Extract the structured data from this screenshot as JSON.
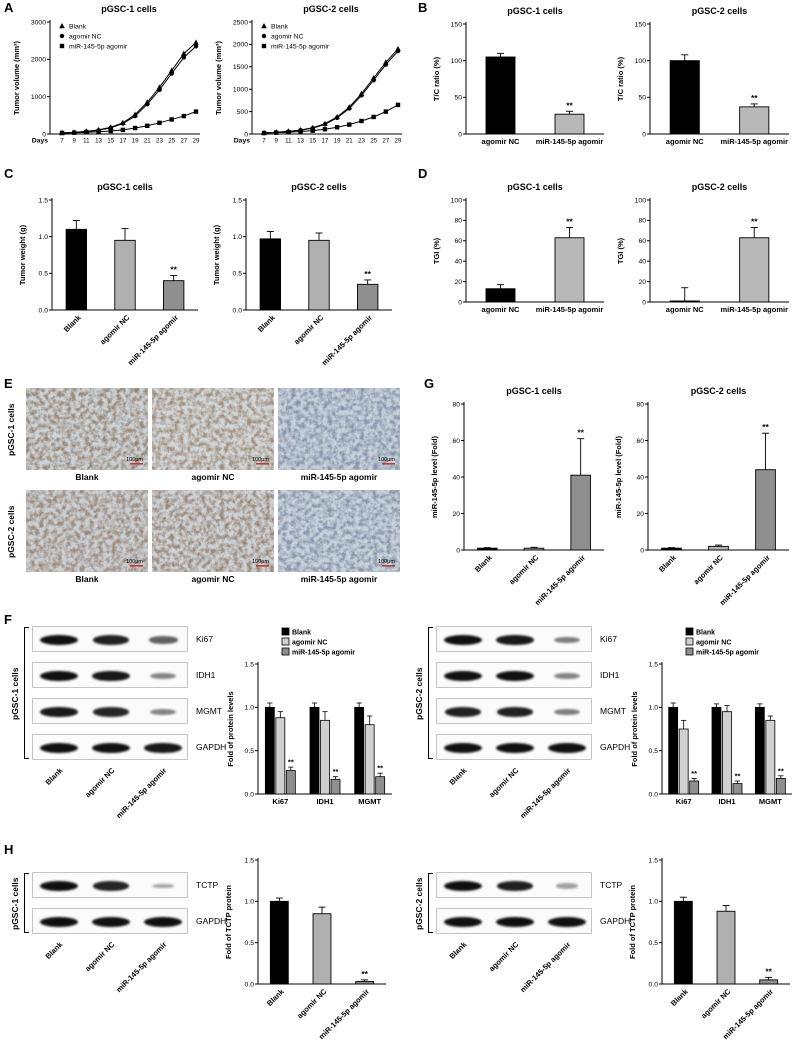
{
  "panels": {
    "A": "A",
    "B": "B",
    "C": "C",
    "D": "D",
    "E": "E",
    "F": "F",
    "G": "G",
    "H": "H"
  },
  "chart_data": [
    {
      "id": "A1",
      "type": "line",
      "title": "pGSC-1 cells",
      "ylabel": "Tumor volume (mm³)",
      "xlabel": "Days",
      "x": [
        7,
        9,
        11,
        13,
        15,
        17,
        19,
        21,
        23,
        25,
        27,
        29
      ],
      "ylim": [
        0,
        3000
      ],
      "yticks": [
        0,
        1000,
        2000,
        3000
      ],
      "series": [
        {
          "name": "Blank",
          "marker": "triangle",
          "values": [
            30,
            45,
            70,
            110,
            180,
            300,
            520,
            850,
            1250,
            1700,
            2150,
            2450
          ]
        },
        {
          "name": "agomir NC",
          "marker": "circle",
          "values": [
            28,
            42,
            65,
            100,
            165,
            280,
            480,
            800,
            1180,
            1620,
            2050,
            2350
          ]
        },
        {
          "name": "miR-145-5p agomir",
          "marker": "square",
          "values": [
            28,
            35,
            45,
            60,
            80,
            110,
            160,
            220,
            300,
            390,
            480,
            600
          ]
        }
      ]
    },
    {
      "id": "A2",
      "type": "line",
      "title": "pGSC-2 cells",
      "ylabel": "Tumor volume (mm³)",
      "xlabel": "Days",
      "x": [
        7,
        9,
        11,
        13,
        15,
        17,
        19,
        21,
        23,
        25,
        27,
        29
      ],
      "ylim": [
        0,
        2500
      ],
      "yticks": [
        0,
        500,
        1000,
        1500,
        2000,
        2500
      ],
      "series": [
        {
          "name": "Blank",
          "marker": "triangle",
          "values": [
            25,
            40,
            60,
            90,
            140,
            230,
            380,
            600,
            900,
            1250,
            1600,
            1900
          ]
        },
        {
          "name": "agomir NC",
          "marker": "circle",
          "values": [
            24,
            38,
            55,
            85,
            130,
            215,
            360,
            570,
            860,
            1200,
            1550,
            1850
          ]
        },
        {
          "name": "miR-145-5p agomir",
          "marker": "square",
          "values": [
            22,
            30,
            40,
            55,
            75,
            105,
            150,
            210,
            290,
            380,
            500,
            650
          ]
        }
      ]
    },
    {
      "id": "B1",
      "type": "bar",
      "title": "pGSC-1 cells",
      "ylabel": "T/C ratio (%)",
      "categories": [
        "agomir NC",
        "miR-145-5p agomir"
      ],
      "values": [
        105,
        27
      ],
      "errors": [
        5,
        4
      ],
      "colors": [
        "#000000",
        "#b8b8b8"
      ],
      "ylim": [
        0,
        150
      ],
      "yticks": [
        0,
        50,
        100,
        150
      ],
      "sig": [
        null,
        "**"
      ],
      "rotate_labels": false
    },
    {
      "id": "B2",
      "type": "bar",
      "title": "pGSC-2 cells",
      "ylabel": "T/C ratio (%)",
      "categories": [
        "agomir NC",
        "miR-145-5p agomir"
      ],
      "values": [
        100,
        37
      ],
      "errors": [
        8,
        4
      ],
      "colors": [
        "#000000",
        "#b8b8b8"
      ],
      "ylim": [
        0,
        150
      ],
      "yticks": [
        0,
        50,
        100,
        150
      ],
      "sig": [
        null,
        "**"
      ],
      "rotate_labels": false
    },
    {
      "id": "C1",
      "type": "bar",
      "title": "pGSC-1 cells",
      "ylabel": "Tumor weight (g)",
      "categories": [
        "Blank",
        "agomir NC",
        "miR-145-5p agomir"
      ],
      "values": [
        1.1,
        0.95,
        0.4
      ],
      "errors": [
        0.12,
        0.16,
        0.07
      ],
      "colors": [
        "#000000",
        "#b0b0b0",
        "#8f8f8f"
      ],
      "ylim": [
        0,
        1.5
      ],
      "yticks": [
        0,
        0.5,
        1,
        1.5
      ],
      "ytick_labels": [
        "0.0",
        "0.5",
        "1.0",
        "1.5"
      ],
      "sig": [
        null,
        null,
        "**"
      ],
      "rotate_labels": true
    },
    {
      "id": "C2",
      "type": "bar",
      "title": "pGSC-2 cells",
      "ylabel": "Tumor weight (g)",
      "categories": [
        "Blank",
        "agomir NC",
        "miR-145-5p agomir"
      ],
      "values": [
        0.97,
        0.95,
        0.35
      ],
      "errors": [
        0.1,
        0.1,
        0.06
      ],
      "colors": [
        "#000000",
        "#b0b0b0",
        "#8f8f8f"
      ],
      "ylim": [
        0,
        1.5
      ],
      "yticks": [
        0,
        0.5,
        1,
        1.5
      ],
      "ytick_labels": [
        "0.0",
        "0.5",
        "1.0",
        "1.5"
      ],
      "sig": [
        null,
        null,
        "**"
      ],
      "rotate_labels": true
    },
    {
      "id": "D1",
      "type": "bar",
      "title": "pGSC-1 cells",
      "ylabel": "TGI (%)",
      "categories": [
        "agomir NC",
        "miR-145-5p agomir"
      ],
      "values": [
        13,
        63
      ],
      "errors": [
        4,
        10
      ],
      "colors": [
        "#000000",
        "#b8b8b8"
      ],
      "ylim": [
        0,
        100
      ],
      "yticks": [
        0,
        20,
        40,
        60,
        80,
        100
      ],
      "sig": [
        null,
        "**"
      ],
      "rotate_labels": false
    },
    {
      "id": "D2",
      "type": "bar",
      "title": "pGSC-2 cells",
      "ylabel": "TGI (%)",
      "categories": [
        "agomir NC",
        "miR-145-5p agomir"
      ],
      "values": [
        1,
        63
      ],
      "errors": [
        13,
        10
      ],
      "colors": [
        "#000000",
        "#b8b8b8"
      ],
      "ylim": [
        0,
        100
      ],
      "yticks": [
        0,
        20,
        40,
        60,
        80,
        100
      ],
      "sig": [
        null,
        "**"
      ],
      "rotate_labels": false
    },
    {
      "id": "G1",
      "type": "bar",
      "title": "pGSC-1 cells",
      "ylabel": "miR-145-5p level (Fold)",
      "categories": [
        "Blank",
        "agomir NC",
        "miR-145-5p agomir"
      ],
      "values": [
        1,
        1,
        41
      ],
      "errors": [
        0.3,
        0.5,
        20
      ],
      "colors": [
        "#000000",
        "#b0b0b0",
        "#8f8f8f"
      ],
      "ylim": [
        0,
        80
      ],
      "yticks": [
        0,
        20,
        40,
        60,
        80
      ],
      "sig": [
        null,
        null,
        "**"
      ],
      "rotate_labels": true
    },
    {
      "id": "G2",
      "type": "bar",
      "title": "pGSC-2 cells",
      "ylabel": "miR-145-5p level (Fold)",
      "categories": [
        "Blank",
        "agomir NC",
        "miR-145-5p agomir"
      ],
      "values": [
        1,
        2,
        44
      ],
      "errors": [
        0.3,
        0.7,
        20
      ],
      "colors": [
        "#000000",
        "#b0b0b0",
        "#8f8f8f"
      ],
      "ylim": [
        0,
        80
      ],
      "yticks": [
        0,
        20,
        40,
        60,
        80
      ],
      "sig": [
        null,
        null,
        "**"
      ],
      "rotate_labels": true
    },
    {
      "id": "F1",
      "type": "grouped-bar",
      "ylabel": "Fold of protein levels",
      "categories": [
        "Ki67",
        "IDH1",
        "MGMT"
      ],
      "ylim": [
        0,
        1.5
      ],
      "yticks": [
        0,
        0.5,
        1,
        1.5
      ],
      "ytick_labels": [
        "0.0",
        "0.5",
        "1.0",
        "1.5"
      ],
      "series": [
        {
          "name": "Blank",
          "color": "#000000",
          "values": [
            1.0,
            1.0,
            1.0
          ],
          "errors": [
            0.05,
            0.05,
            0.05
          ]
        },
        {
          "name": "agomir NC",
          "color": "#d0d0d0",
          "values": [
            0.88,
            0.85,
            0.8
          ],
          "errors": [
            0.07,
            0.1,
            0.1
          ]
        },
        {
          "name": "miR-145-5p agomir",
          "color": "#8f8f8f",
          "values": [
            0.27,
            0.17,
            0.2
          ],
          "errors": [
            0.04,
            0.03,
            0.04
          ],
          "sig": "**"
        }
      ]
    },
    {
      "id": "F2",
      "type": "grouped-bar",
      "ylabel": "Fold of protein levels",
      "categories": [
        "Ki67",
        "IDH1",
        "MGMT"
      ],
      "ylim": [
        0,
        1.5
      ],
      "yticks": [
        0,
        0.5,
        1,
        1.5
      ],
      "ytick_labels": [
        "0.0",
        "0.5",
        "1.0",
        "1.5"
      ],
      "series": [
        {
          "name": "Blank",
          "color": "#000000",
          "values": [
            1.0,
            1.0,
            1.0
          ],
          "errors": [
            0.05,
            0.04,
            0.04
          ]
        },
        {
          "name": "agomir NC",
          "color": "#d0d0d0",
          "values": [
            0.75,
            0.95,
            0.85
          ],
          "errors": [
            0.1,
            0.07,
            0.05
          ]
        },
        {
          "name": "miR-145-5p agomir",
          "color": "#8f8f8f",
          "values": [
            0.15,
            0.12,
            0.18
          ],
          "errors": [
            0.03,
            0.03,
            0.03
          ],
          "sig": "**"
        }
      ]
    },
    {
      "id": "H1",
      "type": "bar",
      "ylabel": "Fold of TCTP protein",
      "categories": [
        "Blank",
        "agomir NC",
        "miR-145-5p agomir"
      ],
      "values": [
        1.0,
        0.85,
        0.03
      ],
      "errors": [
        0.04,
        0.08,
        0.02
      ],
      "colors": [
        "#000000",
        "#b0b0b0",
        "#8f8f8f"
      ],
      "ylim": [
        0,
        1.5
      ],
      "yticks": [
        0,
        0.5,
        1,
        1.5
      ],
      "ytick_labels": [
        "0.0",
        "0.5",
        "1.0",
        "1.5"
      ],
      "sig": [
        null,
        null,
        "**"
      ],
      "rotate_labels": true
    },
    {
      "id": "H2",
      "type": "bar",
      "ylabel": "Fold of TCTP protein",
      "categories": [
        "Blank",
        "agomir NC",
        "miR-145-5p agomir"
      ],
      "values": [
        1.0,
        0.88,
        0.05
      ],
      "errors": [
        0.05,
        0.07,
        0.03
      ],
      "colors": [
        "#000000",
        "#b0b0b0",
        "#8f8f8f"
      ],
      "ylim": [
        0,
        1.5
      ],
      "yticks": [
        0,
        0.5,
        1,
        1.5
      ],
      "ytick_labels": [
        "0.0",
        "0.5",
        "1.0",
        "1.5"
      ],
      "sig": [
        null,
        null,
        "**"
      ],
      "rotate_labels": true
    }
  ],
  "ihc": {
    "row_labels": [
      "pGSC-1 cells",
      "pGSC-2 cells"
    ],
    "col_labels": [
      "Blank",
      "agomir NC",
      "miR-145-5p agomir"
    ],
    "scale_label": "100μm",
    "images": [
      [
        {
          "base": "#ccd5da",
          "spot": "#8a6a4e"
        },
        {
          "base": "#d2d8db",
          "spot": "#93765a"
        },
        {
          "base": "#c9d2db",
          "spot": "#70809b"
        }
      ],
      [
        {
          "base": "#cbd1d7",
          "spot": "#8f7055"
        },
        {
          "base": "#cfd4d9",
          "spot": "#8a6c52"
        },
        {
          "base": "#cad3db",
          "spot": "#72829c"
        }
      ]
    ]
  },
  "blots": [
    {
      "id": "WB-F1",
      "cell": "pGSC-1 cells",
      "lanes": [
        "Blank",
        "agomir NC",
        "miR-145-5p agomir"
      ],
      "rows": [
        {
          "protein": "Ki67",
          "bands": [
            1,
            0.9,
            0.5
          ]
        },
        {
          "protein": "IDH1",
          "bands": [
            1,
            0.95,
            0.3
          ]
        },
        {
          "protein": "MGMT",
          "bands": [
            0.95,
            0.85,
            0.3
          ]
        },
        {
          "protein": "GAPDH",
          "bands": [
            1,
            1,
            0.95
          ]
        }
      ]
    },
    {
      "id": "WB-F2",
      "cell": "pGSC-2 cells",
      "lanes": [
        "Blank",
        "agomir NC",
        "miR-145-5p agomir"
      ],
      "rows": [
        {
          "protein": "Ki67",
          "bands": [
            1,
            0.95,
            0.35
          ]
        },
        {
          "protein": "IDH1",
          "bands": [
            1,
            1,
            0.3
          ]
        },
        {
          "protein": "MGMT",
          "bands": [
            0.9,
            0.9,
            0.35
          ]
        },
        {
          "protein": "GAPDH",
          "bands": [
            1,
            1,
            1
          ]
        }
      ]
    },
    {
      "id": "WB-H1",
      "cell": "pGSC-1 cells",
      "lanes": [
        "Blank",
        "agomir NC",
        "miR-145-5p agomir"
      ],
      "rows": [
        {
          "protein": "TCTP",
          "bands": [
            1,
            0.85,
            0.08
          ]
        },
        {
          "protein": "GAPDH",
          "bands": [
            1,
            1,
            1
          ]
        }
      ]
    },
    {
      "id": "WB-H2",
      "cell": "pGSC-2 cells",
      "lanes": [
        "Blank",
        "agomir NC",
        "miR-145-5p agomir"
      ],
      "rows": [
        {
          "protein": "TCTP",
          "bands": [
            1,
            0.9,
            0.12
          ]
        },
        {
          "protein": "GAPDH",
          "bands": [
            1,
            1,
            1
          ]
        }
      ]
    }
  ]
}
